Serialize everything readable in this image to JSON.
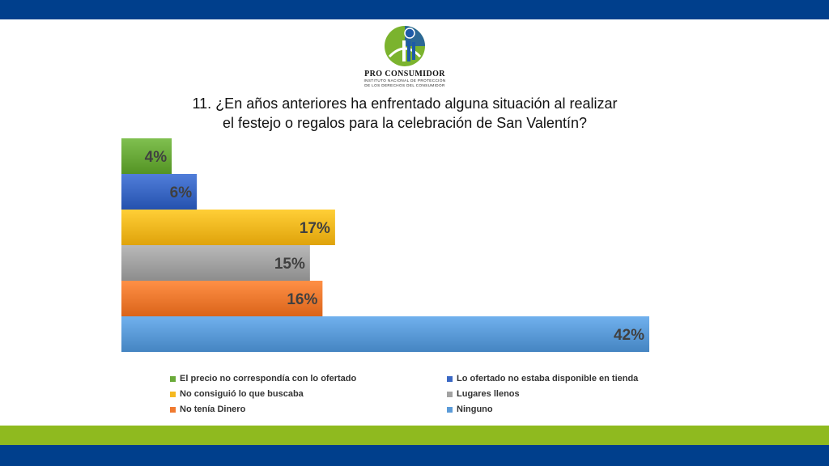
{
  "header": {
    "band_color": "#003f8c"
  },
  "logo": {
    "name": "PRO CONSUMIDOR",
    "subtitle_line1": "INSTITUTO NACIONAL DE PROTECCIÓN",
    "subtitle_line2": "DE LOS DERECHOS DEL CONSUMIDOR"
  },
  "footer": {
    "green_color": "#8fba1f",
    "blue_color": "#003f8c"
  },
  "chart_data": {
    "type": "bar",
    "orientation": "horizontal",
    "title_line1": "11. ¿En años anteriores ha enfrentado alguna situación al realizar",
    "title_line2": "el festejo o regalos para la celebración de San Valentín?",
    "xlabel": "",
    "ylabel": "",
    "xlim": [
      0,
      42
    ],
    "grid": false,
    "legend_position": "bottom",
    "value_suffix": "%",
    "series": [
      {
        "name": "El precio no correspondía con lo ofertado",
        "value": 4,
        "label": "4%",
        "color": "#6aaa3a"
      },
      {
        "name": "Lo ofertado no estaba disponible en tienda",
        "value": 6,
        "label": "6%",
        "color": "#3b68c4"
      },
      {
        "name": "No consiguió lo que buscaba",
        "value": 17,
        "label": "17%",
        "color": "#f5b921"
      },
      {
        "name": "Lugares llenos",
        "value": 15,
        "label": "15%",
        "color": "#a3a3a3"
      },
      {
        "name": "No tenía Dinero",
        "value": 16,
        "label": "16%",
        "color": "#f07a30"
      },
      {
        "name": "Ninguno",
        "value": 42,
        "label": "42%",
        "color": "#5b9bd8"
      }
    ]
  }
}
